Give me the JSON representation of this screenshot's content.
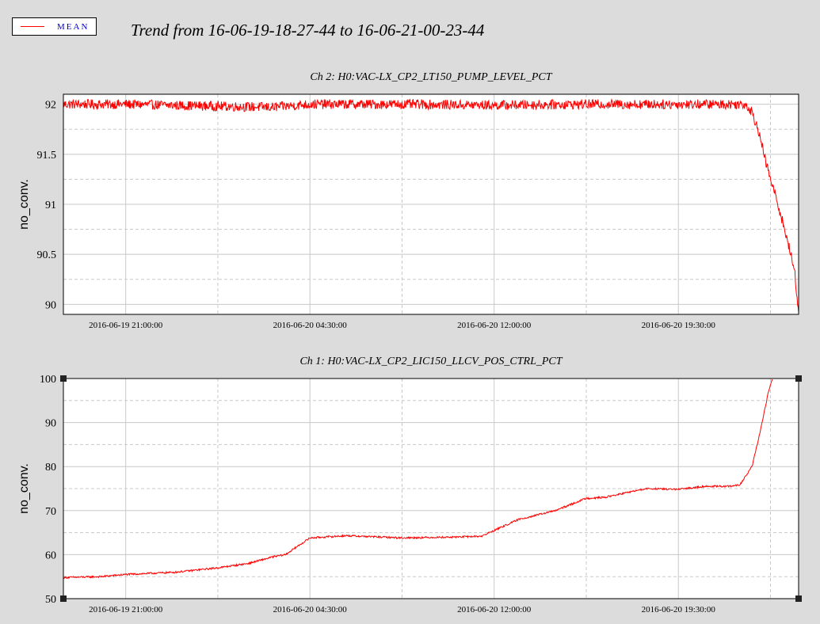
{
  "legend": {
    "swatch_color": "#ff0000",
    "label": "MEAN"
  },
  "title": "Trend from 16-06-19-18-27-44 to 16-06-21-00-23-44",
  "chart_data": [
    {
      "type": "line",
      "title": "Ch 2: H0:VAC-LX_CP2_LT150_PUMP_LEVEL_PCT",
      "ylabel": "no_conv.",
      "xlabel": "",
      "x_start": "2016-06-19 18:27:44",
      "x_end": "2016-06-21 00:23:44",
      "ylim": [
        89.9,
        92.1
      ],
      "yticks": [
        "92",
        "91.5",
        "91",
        "90.5",
        "90"
      ],
      "xticks": [
        "2016-06-19 21:00:00",
        "2016-06-20 04:30:00",
        "2016-06-20 12:00:00",
        "2016-06-20 19:30:00"
      ],
      "grid": true,
      "series": [
        {
          "color": "#ff0000",
          "x": [
            "2016-06-19 18:27:44",
            "2016-06-19 21:00:00",
            "2016-06-20 00:45:00",
            "2016-06-20 03:00:00",
            "2016-06-20 04:30:00",
            "2016-06-20 08:15:00",
            "2016-06-20 12:00:00",
            "2016-06-20 15:45:00",
            "2016-06-20 19:30:00",
            "2016-06-20 21:00:00",
            "2016-06-20 22:15:00",
            "2016-06-20 22:30:00",
            "2016-06-20 22:45:00",
            "2016-06-20 23:00:00",
            "2016-06-20 23:15:00",
            "2016-06-20 23:30:00",
            "2016-06-20 23:45:00",
            "2016-06-21 00:00:00",
            "2016-06-21 00:15:00",
            "2016-06-21 00:23:44"
          ],
          "y": [
            92.0,
            92.0,
            91.98,
            91.97,
            92.0,
            92.0,
            91.99,
            92.0,
            92.0,
            92.0,
            92.0,
            91.92,
            91.75,
            91.48,
            91.25,
            91.05,
            90.82,
            90.58,
            90.3,
            89.9
          ]
        }
      ]
    },
    {
      "type": "line",
      "title": "Ch 1: H0:VAC-LX_CP2_LIC150_LLCV_POS_CTRL_PCT",
      "ylabel": "no_conv.",
      "xlabel": "",
      "x_start": "2016-06-19 18:27:44",
      "x_end": "2016-06-21 00:23:44",
      "ylim": [
        50,
        100
      ],
      "yticks": [
        "100",
        "90",
        "80",
        "70",
        "60",
        "50"
      ],
      "xticks": [
        "2016-06-19 21:00:00",
        "2016-06-20 04:30:00",
        "2016-06-20 12:00:00",
        "2016-06-20 19:30:00"
      ],
      "grid": true,
      "series": [
        {
          "color": "#ff0000",
          "x": [
            "2016-06-19 18:27:44",
            "2016-06-19 20:00:00",
            "2016-06-19 21:00:00",
            "2016-06-19 23:00:00",
            "2016-06-20 00:45:00",
            "2016-06-20 02:00:00",
            "2016-06-20 03:00:00",
            "2016-06-20 03:30:00",
            "2016-06-20 04:30:00",
            "2016-06-20 06:00:00",
            "2016-06-20 08:15:00",
            "2016-06-20 10:30:00",
            "2016-06-20 11:30:00",
            "2016-06-20 12:00:00",
            "2016-06-20 13:00:00",
            "2016-06-20 14:30:00",
            "2016-06-20 15:45:00",
            "2016-06-20 16:30:00",
            "2016-06-20 17:45:00",
            "2016-06-20 18:15:00",
            "2016-06-20 19:30:00",
            "2016-06-20 20:30:00",
            "2016-06-20 21:30:00",
            "2016-06-20 22:00:00",
            "2016-06-20 22:30:00",
            "2016-06-20 22:50:00",
            "2016-06-20 23:10:00",
            "2016-06-20 23:20:00"
          ],
          "y": [
            54.8,
            55.0,
            55.5,
            56.0,
            57.0,
            58.0,
            59.5,
            60.0,
            63.8,
            64.3,
            63.8,
            64.0,
            64.2,
            65.5,
            68.0,
            70.0,
            72.8,
            73.0,
            74.5,
            75.0,
            74.8,
            75.5,
            75.5,
            75.8,
            80.0,
            88.0,
            97.0,
            100.0
          ]
        }
      ]
    }
  ]
}
